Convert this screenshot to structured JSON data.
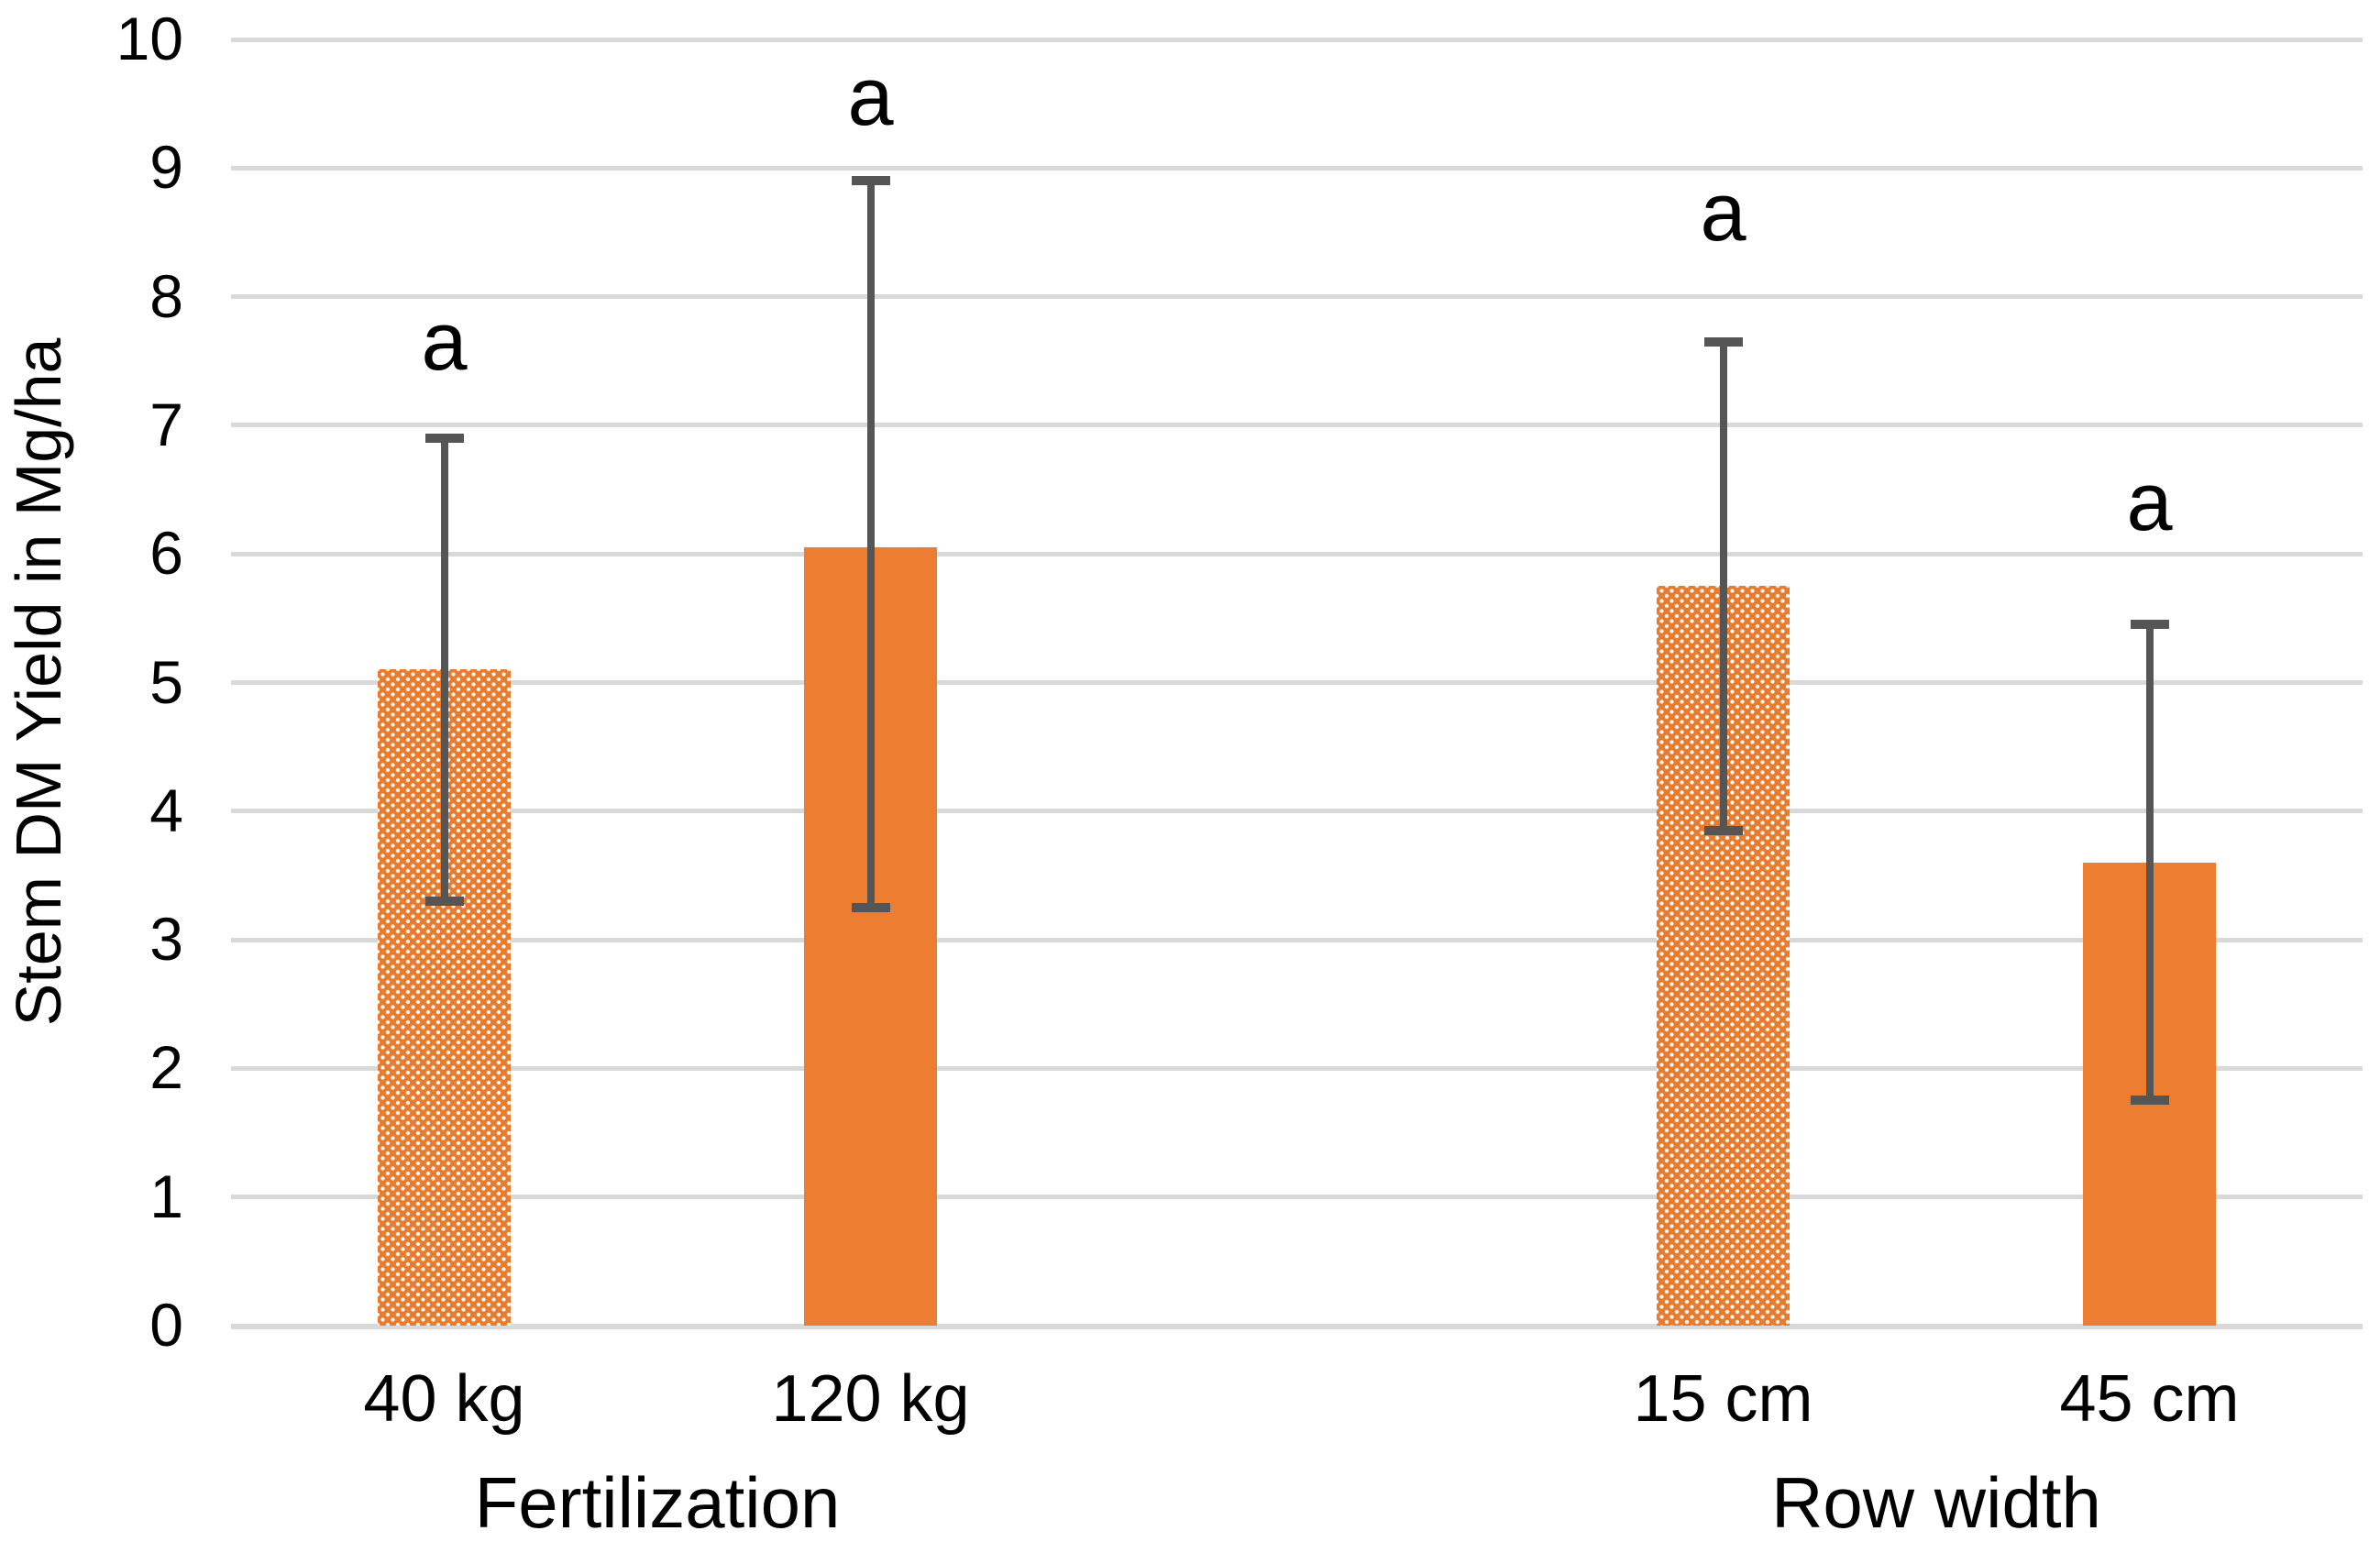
{
  "chart_data": {
    "type": "bar",
    "title": "",
    "xlabel": "",
    "ylabel": "Stem DM Yield in Mg/ha",
    "ylim": [
      0,
      10
    ],
    "yticks": [
      0,
      1,
      2,
      3,
      4,
      5,
      6,
      7,
      8,
      9,
      10
    ],
    "grid": "horizontal",
    "legend": "none",
    "colors": {
      "bar_fill": "#ED7D31",
      "error_bar": "#555555",
      "gridline": "#D9D9D9",
      "text": "#000000"
    },
    "groups": [
      {
        "label": "Fertilization",
        "bars": [
          {
            "category": "40 kg",
            "value": 5.1,
            "err_low": 3.3,
            "err_high": 6.9,
            "letter": "a",
            "letter_y": 7.65,
            "fill_style": "dotted"
          },
          {
            "category": "120 kg",
            "value": 6.05,
            "err_low": 3.25,
            "err_high": 8.9,
            "letter": "a",
            "letter_y": 9.55,
            "fill_style": "solid"
          }
        ]
      },
      {
        "label": "Row width",
        "bars": [
          {
            "category": "15 cm",
            "value": 5.75,
            "err_low": 3.85,
            "err_high": 7.65,
            "letter": "a",
            "letter_y": 8.65,
            "fill_style": "dotted"
          },
          {
            "category": "45 cm",
            "value": 3.6,
            "err_low": 1.75,
            "err_high": 5.45,
            "letter": "a",
            "letter_y": 6.4,
            "fill_style": "solid"
          }
        ]
      }
    ]
  }
}
